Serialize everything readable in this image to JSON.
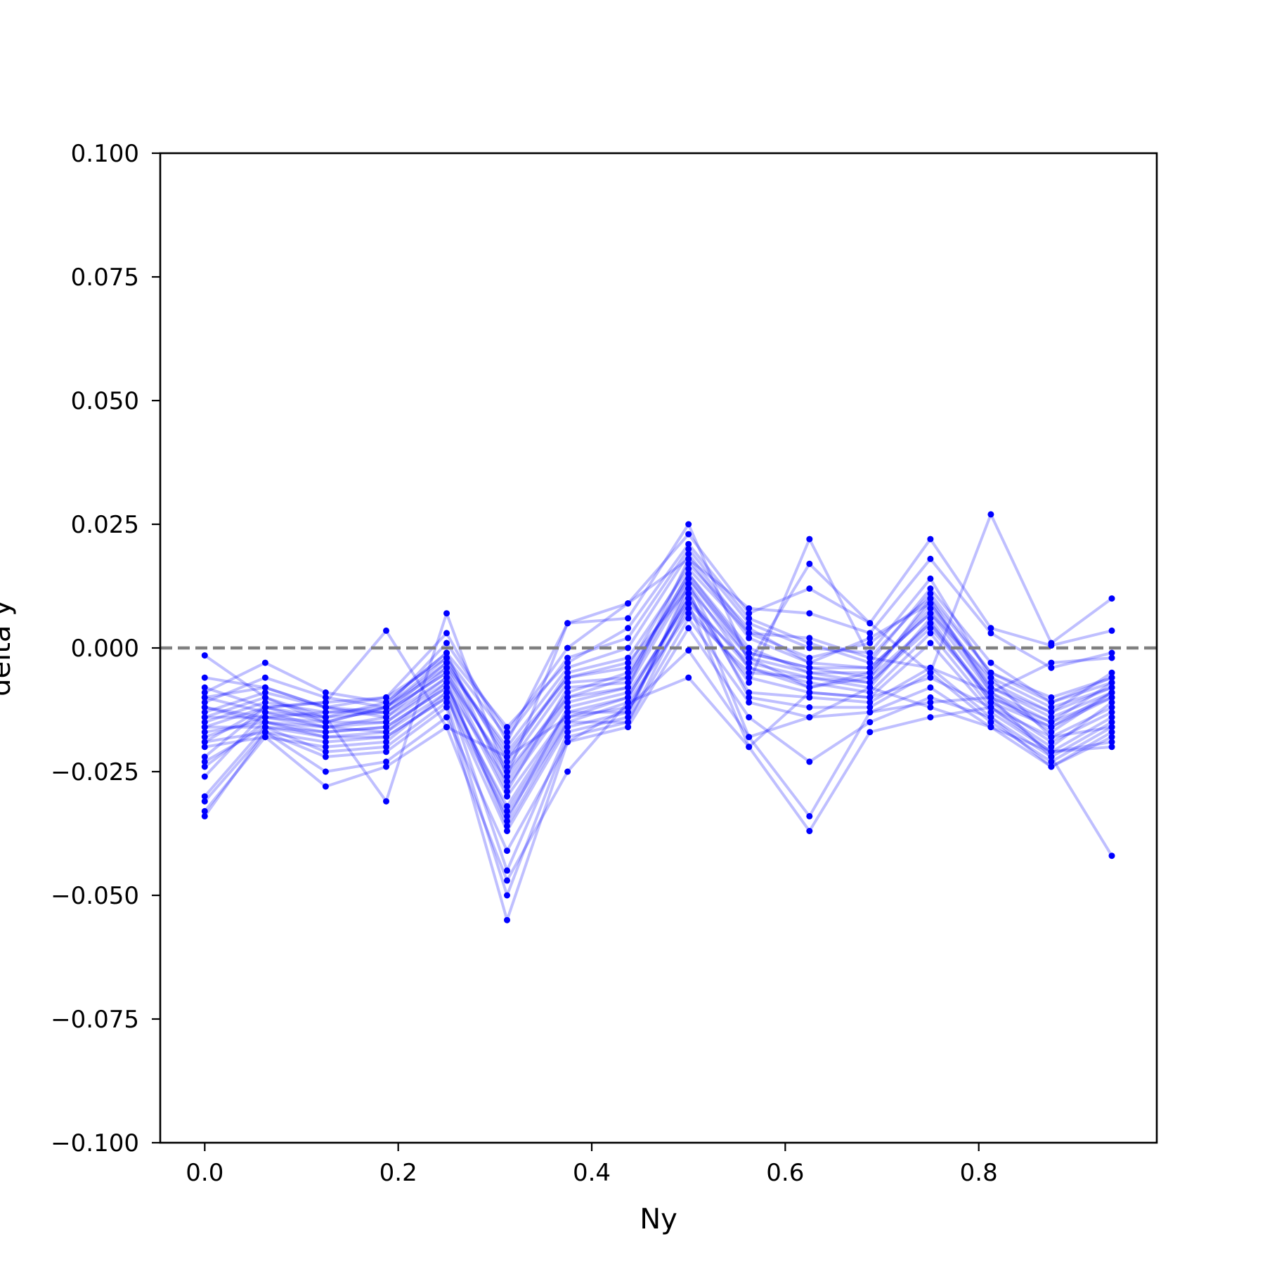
{
  "chart_data": {
    "type": "line",
    "title": "",
    "xlabel": "Ny",
    "ylabel": "delta y",
    "xlim": [
      -0.046,
      0.984
    ],
    "ylim": [
      -0.1,
      0.1
    ],
    "xticks": [
      0.0,
      0.2,
      0.4,
      0.6,
      0.8
    ],
    "xtick_labels": [
      "0.0",
      "0.2",
      "0.4",
      "0.6",
      "0.8"
    ],
    "yticks": [
      -0.1,
      -0.075,
      -0.05,
      -0.025,
      0.0,
      0.025,
      0.05,
      0.075,
      0.1
    ],
    "ytick_labels": [
      "−0.100",
      "−0.075",
      "−0.050",
      "−0.025",
      "0.000",
      "0.025",
      "0.050",
      "0.075",
      "0.100"
    ],
    "reference_line": {
      "y": 0.0,
      "style": "dashed",
      "color": "#808080"
    },
    "grid": false,
    "line_color": "#0000ff",
    "marker_color": "#0000ff",
    "x": [
      0.0,
      0.0625,
      0.125,
      0.1875,
      0.25,
      0.3125,
      0.375,
      0.4375,
      0.5,
      0.5625,
      0.625,
      0.6875,
      0.75,
      0.8125,
      0.875,
      0.9375
    ],
    "series": [
      {
        "values": [
          -0.0015,
          -0.01,
          -0.015,
          -0.012,
          -0.003,
          -0.022,
          -0.006,
          -0.003,
          0.012,
          -0.002,
          -0.008,
          -0.005,
          0.009,
          -0.008,
          -0.013,
          -0.008
        ]
      },
      {
        "values": [
          -0.006,
          -0.008,
          -0.012,
          -0.013,
          -0.005,
          -0.025,
          -0.01,
          -0.006,
          0.015,
          0.0,
          -0.005,
          -0.007,
          0.005,
          -0.01,
          -0.016,
          -0.01
        ]
      },
      {
        "values": [
          -0.008,
          -0.012,
          -0.014,
          -0.011,
          -0.001,
          -0.028,
          -0.011,
          -0.008,
          0.018,
          0.002,
          -0.003,
          -0.004,
          0.007,
          -0.006,
          -0.018,
          -0.012
        ]
      },
      {
        "values": [
          -0.01,
          -0.013,
          -0.016,
          -0.014,
          -0.006,
          -0.03,
          -0.013,
          -0.01,
          0.01,
          -0.004,
          -0.007,
          -0.009,
          0.003,
          -0.012,
          -0.02,
          -0.011
        ]
      },
      {
        "values": [
          -0.012,
          -0.015,
          -0.017,
          -0.016,
          -0.008,
          -0.033,
          -0.014,
          -0.012,
          0.008,
          -0.006,
          -0.009,
          -0.01,
          0.001,
          -0.013,
          -0.021,
          -0.014
        ]
      },
      {
        "values": [
          -0.014,
          -0.014,
          -0.013,
          -0.012,
          -0.004,
          -0.026,
          -0.009,
          -0.005,
          0.014,
          -0.001,
          -0.004,
          -0.006,
          0.01,
          -0.009,
          -0.017,
          -0.009
        ]
      },
      {
        "values": [
          -0.016,
          -0.016,
          -0.018,
          -0.017,
          -0.007,
          -0.036,
          -0.015,
          -0.011,
          0.007,
          -0.005,
          -0.006,
          -0.008,
          0.006,
          -0.011,
          -0.019,
          -0.013
        ]
      },
      {
        "values": [
          -0.019,
          -0.017,
          -0.019,
          -0.018,
          -0.01,
          -0.037,
          -0.016,
          -0.013,
          0.011,
          -0.009,
          -0.01,
          -0.011,
          -0.004,
          -0.014,
          -0.022,
          -0.015
        ]
      },
      {
        "values": [
          -0.02,
          -0.018,
          -0.02,
          -0.019,
          -0.009,
          -0.045,
          -0.017,
          -0.014,
          0.013,
          -0.01,
          -0.012,
          -0.012,
          -0.005,
          -0.015,
          -0.023,
          -0.016
        ]
      },
      {
        "values": [
          -0.022,
          -0.012,
          -0.011,
          -0.01,
          -0.002,
          -0.023,
          -0.005,
          -0.002,
          0.016,
          0.003,
          0.002,
          -0.002,
          0.011,
          -0.005,
          -0.011,
          -0.006
        ]
      },
      {
        "values": [
          -0.024,
          -0.015,
          -0.016,
          -0.015,
          -0.007,
          -0.035,
          -0.012,
          -0.009,
          0.009,
          -0.003,
          -0.006,
          -0.007,
          0.004,
          -0.01,
          -0.015,
          -0.01
        ]
      },
      {
        "values": [
          -0.026,
          -0.013,
          -0.014,
          -0.013,
          -0.005,
          -0.029,
          -0.008,
          -0.007,
          0.014,
          -0.002,
          -0.005,
          -0.005,
          0.008,
          -0.008,
          -0.014,
          -0.009
        ]
      },
      {
        "values": [
          -0.03,
          -0.016,
          -0.021,
          -0.02,
          -0.011,
          -0.05,
          -0.018,
          -0.015,
          0.006,
          -0.011,
          -0.014,
          -0.013,
          -0.008,
          -0.016,
          -0.024,
          -0.017
        ]
      },
      {
        "values": [
          -0.031,
          -0.017,
          -0.022,
          -0.021,
          -0.012,
          -0.055,
          -0.019,
          -0.016,
          0.004,
          -0.014,
          -0.023,
          -0.015,
          -0.01,
          -0.014,
          -0.024,
          -0.018
        ]
      },
      {
        "values": [
          -0.033,
          -0.018,
          -0.028,
          -0.024,
          -0.016,
          -0.047,
          -0.025,
          -0.011,
          -0.006,
          -0.02,
          -0.037,
          -0.017,
          -0.014,
          -0.012,
          -0.021,
          -0.02
        ]
      },
      {
        "values": [
          -0.034,
          -0.017,
          -0.025,
          -0.023,
          -0.014,
          -0.041,
          -0.019,
          -0.012,
          -0.0005,
          -0.018,
          -0.034,
          -0.013,
          -0.011,
          -0.01,
          -0.022,
          -0.042
        ]
      },
      {
        "values": [
          -0.009,
          -0.003,
          -0.009,
          -0.011,
          -0.001,
          -0.016,
          -0.003,
          0.004,
          0.021,
          0.006,
          0.001,
          -0.003,
          0.012,
          -0.003,
          -0.011,
          -0.007
        ]
      },
      {
        "values": [
          -0.011,
          -0.006,
          -0.01,
          -0.012,
          -0.002,
          -0.018,
          -0.002,
          0.002,
          0.02,
          0.005,
          0.0,
          -0.001,
          0.014,
          -0.006,
          -0.012,
          -0.008
        ]
      },
      {
        "values": [
          -0.013,
          -0.009,
          -0.012,
          -0.014,
          -0.004,
          -0.02,
          -0.004,
          0.0,
          0.019,
          0.003,
          -0.002,
          0.001,
          0.01,
          -0.005,
          -0.01,
          -0.006
        ]
      },
      {
        "values": [
          -0.015,
          -0.011,
          -0.013,
          -0.013,
          -0.003,
          -0.021,
          -0.006,
          -0.004,
          0.017,
          0.004,
          -0.003,
          0.002,
          0.009,
          -0.007,
          -0.013,
          -0.005
        ]
      },
      {
        "values": [
          -0.018,
          -0.014,
          -0.015,
          -0.015,
          -0.006,
          -0.024,
          -0.007,
          -0.006,
          0.015,
          -0.001,
          -0.004,
          -0.004,
          0.007,
          -0.009,
          -0.015,
          -0.007
        ]
      },
      {
        "values": [
          -0.023,
          -0.016,
          -0.017,
          -0.016,
          -0.008,
          -0.027,
          -0.01,
          -0.008,
          0.013,
          -0.004,
          -0.008,
          -0.006,
          0.005,
          -0.011,
          -0.016,
          -0.009
        ]
      },
      {
        "values": [
          -0.019,
          -0.012,
          -0.011,
          0.0035,
          -0.016,
          -0.022,
          -0.014,
          -0.01,
          0.01,
          -0.007,
          0.022,
          -0.002,
          -0.004,
          -0.009,
          -0.003,
          -0.002
        ]
      },
      {
        "values": [
          -0.014,
          -0.01,
          -0.014,
          -0.031,
          0.007,
          -0.026,
          0.005,
          0.006,
          0.025,
          -0.003,
          0.017,
          0.005,
          -0.005,
          0.027,
          0.001,
          0.01
        ]
      },
      {
        "values": [
          -0.01,
          -0.008,
          -0.012,
          -0.01,
          0.003,
          -0.019,
          0.005,
          0.009,
          0.023,
          0.007,
          0.012,
          0.005,
          0.022,
          0.004,
          0.0005,
          0.0035
        ]
      },
      {
        "values": [
          -0.016,
          -0.012,
          -0.015,
          -0.012,
          0.001,
          -0.017,
          0.0,
          0.009,
          0.018,
          0.008,
          0.007,
          0.003,
          0.018,
          0.003,
          -0.004,
          -0.001
        ]
      },
      {
        "values": [
          -0.012,
          -0.014,
          -0.016,
          -0.017,
          -0.009,
          -0.032,
          -0.013,
          -0.013,
          0.012,
          -0.018,
          -0.014,
          -0.008,
          -0.012,
          -0.016,
          -0.021,
          -0.019
        ]
      },
      {
        "values": [
          -0.017,
          -0.015,
          -0.018,
          -0.018,
          -0.01,
          -0.034,
          -0.015,
          -0.015,
          0.009,
          -0.02,
          -0.009,
          -0.01,
          -0.006,
          -0.012,
          -0.018,
          -0.016
        ]
      }
    ]
  }
}
